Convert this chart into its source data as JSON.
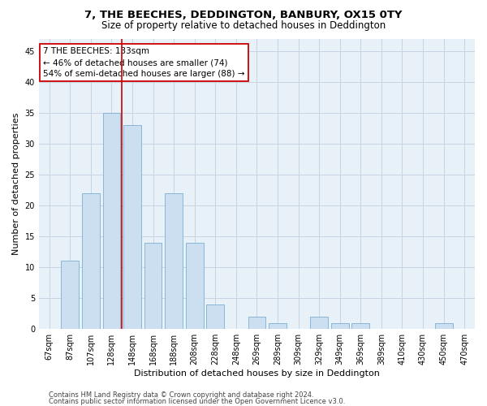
{
  "title": "7, THE BEECHES, DEDDINGTON, BANBURY, OX15 0TY",
  "subtitle": "Size of property relative to detached houses in Deddington",
  "xlabel": "Distribution of detached houses by size in Deddington",
  "ylabel": "Number of detached properties",
  "categories": [
    "67sqm",
    "87sqm",
    "107sqm",
    "128sqm",
    "148sqm",
    "168sqm",
    "188sqm",
    "208sqm",
    "228sqm",
    "248sqm",
    "269sqm",
    "289sqm",
    "309sqm",
    "329sqm",
    "349sqm",
    "369sqm",
    "389sqm",
    "410sqm",
    "430sqm",
    "450sqm",
    "470sqm"
  ],
  "values": [
    0,
    11,
    22,
    35,
    33,
    14,
    22,
    14,
    4,
    0,
    2,
    1,
    0,
    2,
    1,
    1,
    0,
    0,
    0,
    1,
    0
  ],
  "bar_color": "#ccdff0",
  "bar_edge_color": "#7aafd4",
  "grid_color": "#c8d4e4",
  "background_color": "#e8f0f8",
  "vline_x": 3.5,
  "vline_color": "#cc0000",
  "annotation_text": "7 THE BEECHES: 133sqm\n← 46% of detached houses are smaller (74)\n54% of semi-detached houses are larger (88) →",
  "annotation_box_color": "#ffffff",
  "annotation_border_color": "#cc0000",
  "ylim": [
    0,
    47
  ],
  "yticks": [
    0,
    5,
    10,
    15,
    20,
    25,
    30,
    35,
    40,
    45
  ],
  "footer_line1": "Contains HM Land Registry data © Crown copyright and database right 2024.",
  "footer_line2": "Contains public sector information licensed under the Open Government Licence v3.0.",
  "title_fontsize": 9.5,
  "subtitle_fontsize": 8.5,
  "xlabel_fontsize": 8,
  "ylabel_fontsize": 8,
  "tick_fontsize": 7,
  "annotation_fontsize": 7.5,
  "footer_fontsize": 6
}
